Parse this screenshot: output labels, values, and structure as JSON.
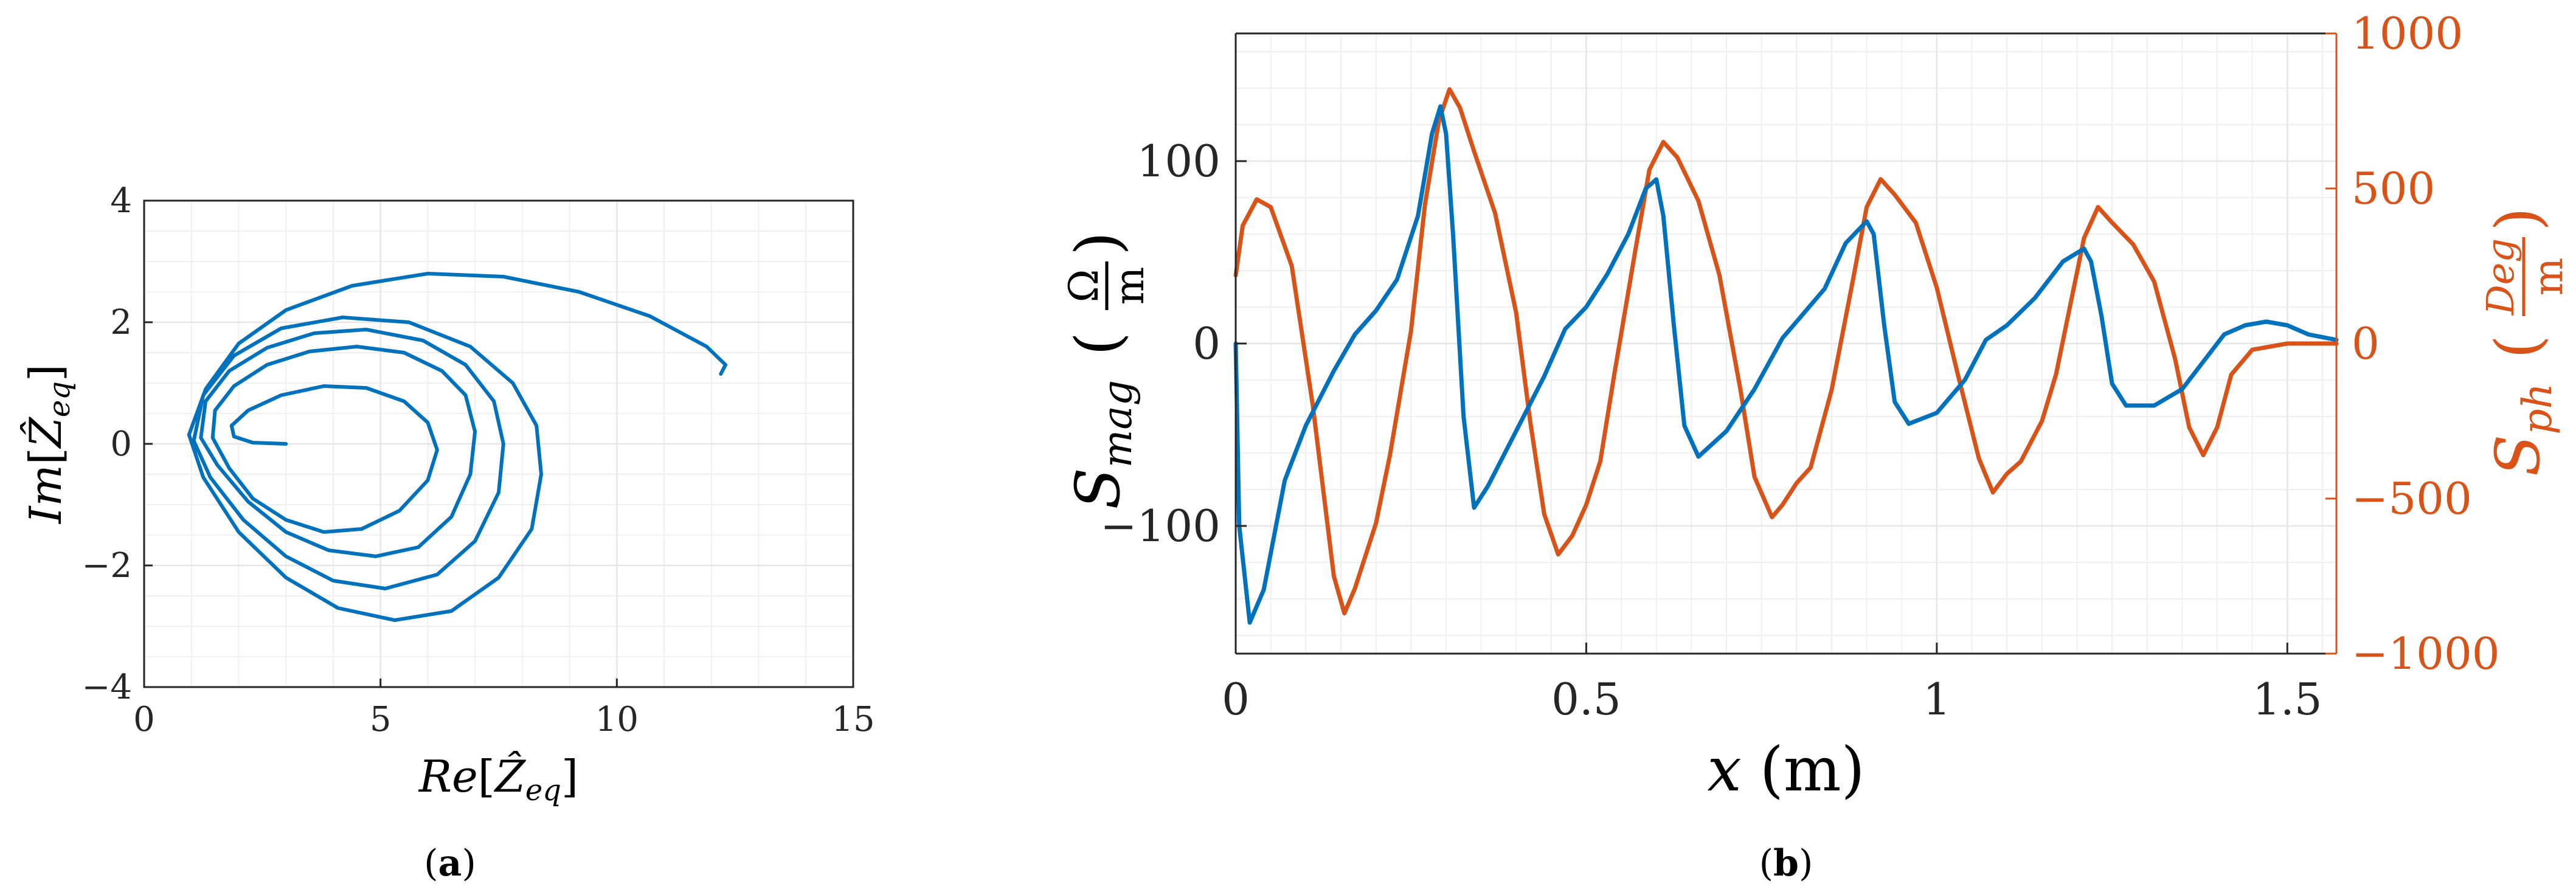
{
  "colors": {
    "blue": "#0072BD",
    "orange": "#D95319",
    "axis": "#262626",
    "grid": "#e6e6e6",
    "minor_grid": "#f0f0f0"
  },
  "captions": {
    "a_open": "(",
    "a_letter": "a",
    "a_close": ")",
    "b_open": "(",
    "b_letter": "b",
    "b_close": ")"
  },
  "chart_data": [
    {
      "type": "line",
      "title": "",
      "xlabel": "Re[Ẑ_eq]",
      "ylabel": "Im[Ẑ_eq]",
      "xlabel_parts": {
        "fn": "Re",
        "open": "[",
        "var": "Ẑ",
        "sub": "eq",
        "close": "]"
      },
      "ylabel_parts": {
        "fn": "Im",
        "open": "[",
        "var": "Ẑ",
        "sub": "eq",
        "close": "]"
      },
      "xlim": [
        0,
        15
      ],
      "ylim": [
        -4,
        4
      ],
      "xticks": [
        0,
        5,
        10,
        15
      ],
      "yticks": [
        -4,
        -2,
        0,
        2,
        4
      ],
      "xtick_labels": [
        "0",
        "5",
        "10",
        "15"
      ],
      "ytick_labels": [
        "−4",
        "−2",
        "0",
        "2",
        "4"
      ],
      "grid": true,
      "series": [
        {
          "color": "#0072BD",
          "points": [
            [
              3.0,
              0.0
            ],
            [
              2.3,
              0.02
            ],
            [
              1.9,
              0.12
            ],
            [
              1.85,
              0.3
            ],
            [
              2.2,
              0.55
            ],
            [
              2.9,
              0.8
            ],
            [
              3.8,
              0.95
            ],
            [
              4.7,
              0.92
            ],
            [
              5.5,
              0.7
            ],
            [
              6.0,
              0.35
            ],
            [
              6.2,
              -0.1
            ],
            [
              6.0,
              -0.6
            ],
            [
              5.4,
              -1.1
            ],
            [
              4.6,
              -1.4
            ],
            [
              3.8,
              -1.45
            ],
            [
              3.0,
              -1.25
            ],
            [
              2.3,
              -0.9
            ],
            [
              1.8,
              -0.4
            ],
            [
              1.45,
              0.1
            ],
            [
              1.5,
              0.55
            ],
            [
              1.9,
              0.95
            ],
            [
              2.6,
              1.3
            ],
            [
              3.5,
              1.52
            ],
            [
              4.5,
              1.6
            ],
            [
              5.5,
              1.5
            ],
            [
              6.3,
              1.2
            ],
            [
              6.8,
              0.8
            ],
            [
              7.0,
              0.2
            ],
            [
              6.9,
              -0.5
            ],
            [
              6.5,
              -1.2
            ],
            [
              5.8,
              -1.7
            ],
            [
              4.9,
              -1.85
            ],
            [
              3.9,
              -1.75
            ],
            [
              3.0,
              -1.45
            ],
            [
              2.2,
              -0.95
            ],
            [
              1.55,
              -0.35
            ],
            [
              1.2,
              0.1
            ],
            [
              1.3,
              0.7
            ],
            [
              1.8,
              1.2
            ],
            [
              2.6,
              1.58
            ],
            [
              3.6,
              1.82
            ],
            [
              4.7,
              1.88
            ],
            [
              5.9,
              1.7
            ],
            [
              6.8,
              1.3
            ],
            [
              7.4,
              0.7
            ],
            [
              7.6,
              0.0
            ],
            [
              7.5,
              -0.8
            ],
            [
              7.0,
              -1.6
            ],
            [
              6.2,
              -2.15
            ],
            [
              5.1,
              -2.38
            ],
            [
              4.0,
              -2.25
            ],
            [
              3.0,
              -1.85
            ],
            [
              2.1,
              -1.25
            ],
            [
              1.4,
              -0.55
            ],
            [
              1.05,
              0.05
            ],
            [
              1.25,
              0.8
            ],
            [
              1.9,
              1.45
            ],
            [
              2.9,
              1.9
            ],
            [
              4.2,
              2.08
            ],
            [
              5.6,
              2.0
            ],
            [
              6.9,
              1.6
            ],
            [
              7.8,
              1.0
            ],
            [
              8.3,
              0.3
            ],
            [
              8.4,
              -0.5
            ],
            [
              8.2,
              -1.4
            ],
            [
              7.5,
              -2.2
            ],
            [
              6.5,
              -2.75
            ],
            [
              5.3,
              -2.9
            ],
            [
              4.1,
              -2.7
            ],
            [
              3.0,
              -2.2
            ],
            [
              2.0,
              -1.45
            ],
            [
              1.25,
              -0.55
            ],
            [
              0.95,
              0.15
            ],
            [
              1.3,
              0.9
            ],
            [
              2.0,
              1.65
            ],
            [
              3.0,
              2.2
            ],
            [
              4.4,
              2.6
            ],
            [
              6.0,
              2.8
            ],
            [
              7.6,
              2.75
            ],
            [
              9.2,
              2.5
            ],
            [
              10.7,
              2.1
            ],
            [
              11.9,
              1.6
            ],
            [
              12.3,
              1.3
            ],
            [
              12.2,
              1.15
            ]
          ]
        }
      ]
    },
    {
      "type": "line",
      "title": "",
      "xlabel": "x (m)",
      "ylabel": "S_mag (Ω/m)",
      "ylabel2": "S_ph (Deg/m)",
      "xlabel_parts": {
        "var": "x",
        "unit": "(m)"
      },
      "ylabel_parts": {
        "var": "S",
        "sub": "mag",
        "num": "Ω",
        "den": "m",
        "open": "(",
        "close": ")"
      },
      "ylabel2_parts": {
        "var": "S",
        "sub": "ph",
        "num": "Deg",
        "den": "m",
        "open": "(",
        "close": ")"
      },
      "xlim": [
        0,
        1.57
      ],
      "ylim": [
        -170,
        170
      ],
      "y2lim": [
        -1000,
        1000
      ],
      "xticks": [
        0,
        0.5,
        1,
        1.5
      ],
      "yticks": [
        -100,
        0,
        100
      ],
      "y2ticks": [
        -1000,
        -500,
        0,
        500,
        1000
      ],
      "xtick_labels": [
        "0",
        "0.5",
        "1",
        "1.5"
      ],
      "ytick_labels": [
        "−100",
        "0",
        "100"
      ],
      "y2tick_labels": [
        "−1000",
        "−500",
        "0",
        "500",
        "1000"
      ],
      "grid": true,
      "series": [
        {
          "axis": "left",
          "color": "#0072BD",
          "points": [
            [
              0,
              0
            ],
            [
              0.005,
              -100
            ],
            [
              0.02,
              -153
            ],
            [
              0.04,
              -135
            ],
            [
              0.07,
              -75
            ],
            [
              0.1,
              -45
            ],
            [
              0.14,
              -15
            ],
            [
              0.17,
              5
            ],
            [
              0.2,
              18
            ],
            [
              0.23,
              35
            ],
            [
              0.26,
              70
            ],
            [
              0.28,
              115
            ],
            [
              0.292,
              130
            ],
            [
              0.3,
              115
            ],
            [
              0.31,
              60
            ],
            [
              0.325,
              -40
            ],
            [
              0.34,
              -90
            ],
            [
              0.36,
              -78
            ],
            [
              0.4,
              -48
            ],
            [
              0.44,
              -18
            ],
            [
              0.47,
              8
            ],
            [
              0.5,
              20
            ],
            [
              0.53,
              38
            ],
            [
              0.56,
              60
            ],
            [
              0.585,
              85
            ],
            [
              0.6,
              90
            ],
            [
              0.61,
              70
            ],
            [
              0.625,
              10
            ],
            [
              0.64,
              -45
            ],
            [
              0.66,
              -62
            ],
            [
              0.7,
              -48
            ],
            [
              0.74,
              -25
            ],
            [
              0.78,
              3
            ],
            [
              0.8,
              12
            ],
            [
              0.84,
              30
            ],
            [
              0.87,
              55
            ],
            [
              0.9,
              67
            ],
            [
              0.91,
              60
            ],
            [
              0.925,
              10
            ],
            [
              0.94,
              -32
            ],
            [
              0.96,
              -44
            ],
            [
              1.0,
              -38
            ],
            [
              1.04,
              -20
            ],
            [
              1.07,
              2
            ],
            [
              1.1,
              10
            ],
            [
              1.14,
              25
            ],
            [
              1.18,
              45
            ],
            [
              1.21,
              52
            ],
            [
              1.22,
              45
            ],
            [
              1.235,
              15
            ],
            [
              1.25,
              -22
            ],
            [
              1.27,
              -34
            ],
            [
              1.31,
              -34
            ],
            [
              1.35,
              -25
            ],
            [
              1.38,
              -10
            ],
            [
              1.41,
              5
            ],
            [
              1.44,
              10
            ],
            [
              1.47,
              12
            ],
            [
              1.5,
              10
            ],
            [
              1.53,
              5
            ],
            [
              1.57,
              2
            ]
          ]
        },
        {
          "axis": "right",
          "color": "#D95319",
          "points": [
            [
              0,
              220
            ],
            [
              0.01,
              380
            ],
            [
              0.03,
              465
            ],
            [
              0.05,
              440
            ],
            [
              0.08,
              250
            ],
            [
              0.11,
              -200
            ],
            [
              0.14,
              -750
            ],
            [
              0.155,
              -870
            ],
            [
              0.17,
              -790
            ],
            [
              0.2,
              -580
            ],
            [
              0.22,
              -360
            ],
            [
              0.25,
              40
            ],
            [
              0.27,
              450
            ],
            [
              0.29,
              720
            ],
            [
              0.305,
              820
            ],
            [
              0.32,
              760
            ],
            [
              0.34,
              620
            ],
            [
              0.37,
              420
            ],
            [
              0.4,
              100
            ],
            [
              0.42,
              -250
            ],
            [
              0.44,
              -550
            ],
            [
              0.46,
              -680
            ],
            [
              0.48,
              -620
            ],
            [
              0.5,
              -520
            ],
            [
              0.52,
              -380
            ],
            [
              0.54,
              -100
            ],
            [
              0.57,
              300
            ],
            [
              0.59,
              560
            ],
            [
              0.61,
              650
            ],
            [
              0.63,
              600
            ],
            [
              0.66,
              460
            ],
            [
              0.69,
              220
            ],
            [
              0.72,
              -150
            ],
            [
              0.74,
              -430
            ],
            [
              0.765,
              -560
            ],
            [
              0.78,
              -520
            ],
            [
              0.8,
              -450
            ],
            [
              0.82,
              -400
            ],
            [
              0.85,
              -150
            ],
            [
              0.88,
              200
            ],
            [
              0.9,
              440
            ],
            [
              0.92,
              530
            ],
            [
              0.94,
              480
            ],
            [
              0.97,
              390
            ],
            [
              1.0,
              180
            ],
            [
              1.03,
              -100
            ],
            [
              1.06,
              -370
            ],
            [
              1.08,
              -480
            ],
            [
              1.1,
              -420
            ],
            [
              1.12,
              -380
            ],
            [
              1.15,
              -250
            ],
            [
              1.17,
              -100
            ],
            [
              1.19,
              120
            ],
            [
              1.21,
              340
            ],
            [
              1.23,
              440
            ],
            [
              1.25,
              390
            ],
            [
              1.28,
              320
            ],
            [
              1.31,
              200
            ],
            [
              1.34,
              -50
            ],
            [
              1.36,
              -270
            ],
            [
              1.38,
              -360
            ],
            [
              1.4,
              -270
            ],
            [
              1.42,
              -100
            ],
            [
              1.45,
              -20
            ],
            [
              1.5,
              0
            ],
            [
              1.57,
              0
            ]
          ]
        }
      ]
    }
  ]
}
